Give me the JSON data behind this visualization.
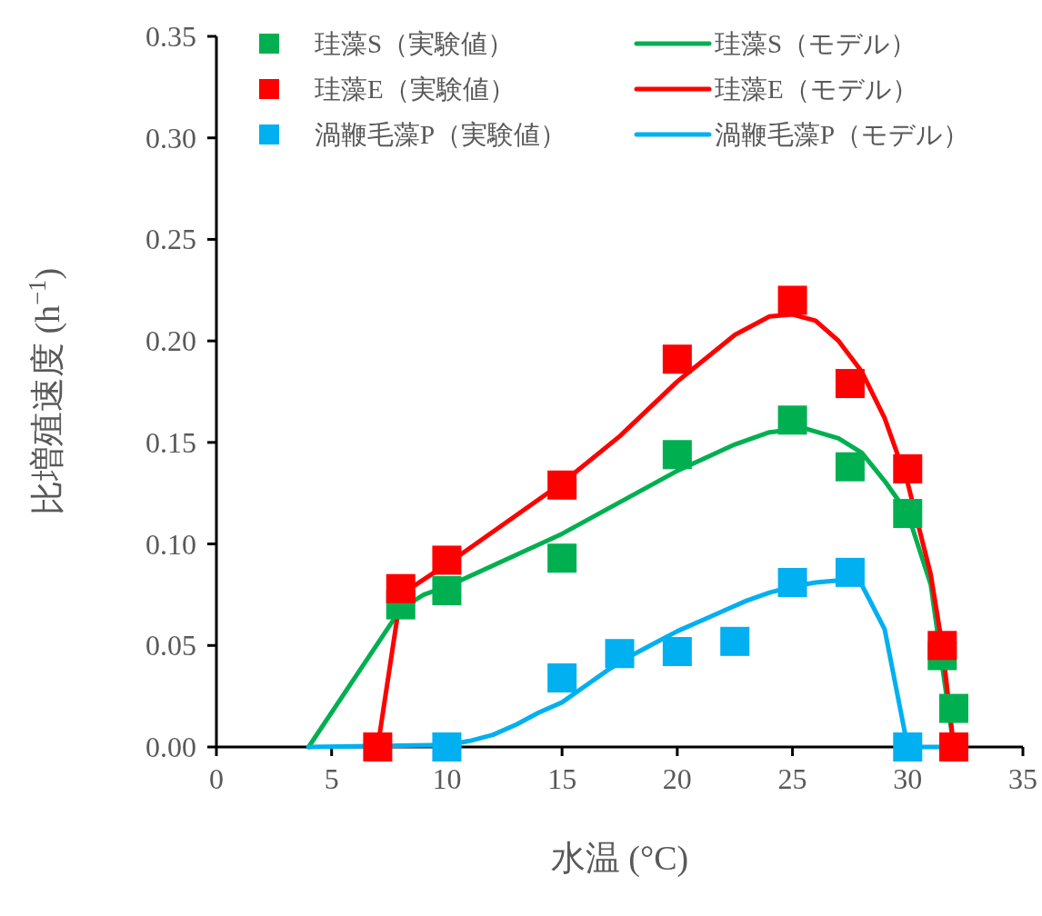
{
  "chart_data": {
    "type": "scatter",
    "xlabel": "水温 (°C)",
    "ylabel": "比増殖速度 (h$^{−1}$)",
    "xlim": [
      0,
      35
    ],
    "xticks": [
      0,
      5,
      10,
      15,
      20,
      25,
      30,
      35
    ],
    "ylim": [
      0,
      0.35
    ],
    "yticks": [
      {
        "value": 0,
        "label": "0.00"
      },
      {
        "value": 0.05,
        "label": "0.05"
      },
      {
        "value": 0.1,
        "label": "0.10"
      },
      {
        "value": 0.15,
        "label": "0.15"
      },
      {
        "value": 0.2,
        "label": "0.20"
      },
      {
        "value": 0.25,
        "label": "0.25"
      },
      {
        "value": 0.3,
        "label": "0.30"
      },
      {
        "value": 0.35,
        "label": "0.35"
      }
    ],
    "grid": false,
    "legend": "top",
    "series": [
      {
        "marker": "square",
        "name": "珪藻S（実験値）",
        "color": "#00b050",
        "x": [
          8,
          10,
          15,
          20,
          25,
          27.5,
          30,
          31.5,
          32
        ],
        "values": [
          0.07,
          0.077,
          0.093,
          0.144,
          0.161,
          0.138,
          0.115,
          0.045,
          0.019
        ]
      },
      {
        "marker": "square",
        "name": "珪藻E（実験値）",
        "color": "#ff0000",
        "x": [
          7,
          8,
          10,
          15,
          20,
          25,
          27.5,
          30,
          31.5,
          32
        ],
        "values": [
          0,
          0.078,
          0.092,
          0.129,
          0.191,
          0.22,
          0.179,
          0.137,
          0.05,
          0
        ]
      },
      {
        "marker": "square",
        "name": "渦鞭毛藻P（実験値）",
        "color": "#00b0f0",
        "x": [
          10,
          15,
          17.5,
          20,
          22.5,
          25,
          27.5,
          30
        ],
        "values": [
          0,
          0.034,
          0.046,
          0.047,
          0.052,
          0.081,
          0.086,
          0
        ]
      },
      {
        "type": "line",
        "marker": "none",
        "name": "珪藻S（モデル）",
        "color": "#00b050",
        "x": [
          4,
          8,
          9,
          10,
          15,
          20,
          22.5,
          24,
          25.5,
          27,
          28,
          29,
          30,
          31,
          32
        ],
        "values": [
          0,
          0.068,
          0.075,
          0.079,
          0.105,
          0.136,
          0.149,
          0.155,
          0.157,
          0.152,
          0.145,
          0.131,
          0.115,
          0.08,
          0
        ]
      },
      {
        "type": "line",
        "marker": "none",
        "name": "珪藻E（モデル）",
        "color": "#ff0000",
        "x": [
          7,
          8,
          10,
          12.5,
          15,
          17.5,
          20,
          22.5,
          24,
          25,
          26,
          27,
          28,
          29,
          30,
          31,
          31.5,
          32
        ],
        "values": [
          0,
          0.075,
          0.09,
          0.11,
          0.13,
          0.153,
          0.18,
          0.203,
          0.212,
          0.213,
          0.21,
          0.2,
          0.185,
          0.162,
          0.13,
          0.085,
          0.05,
          0
        ]
      },
      {
        "type": "line",
        "marker": "none",
        "name": "渦鞭毛藻P（モデル）",
        "color": "#00b0f0",
        "x": [
          4,
          10,
          11,
          12,
          13,
          14,
          15,
          16,
          17,
          18,
          19,
          20,
          21,
          22,
          23,
          24,
          25,
          26,
          27,
          28,
          29,
          30,
          32
        ],
        "values": [
          0,
          0.001,
          0.003,
          0.006,
          0.011,
          0.017,
          0.022,
          0.03,
          0.038,
          0.045,
          0.051,
          0.057,
          0.062,
          0.067,
          0.072,
          0.076,
          0.079,
          0.081,
          0.082,
          0.08,
          0.058,
          0,
          0
        ]
      }
    ]
  }
}
